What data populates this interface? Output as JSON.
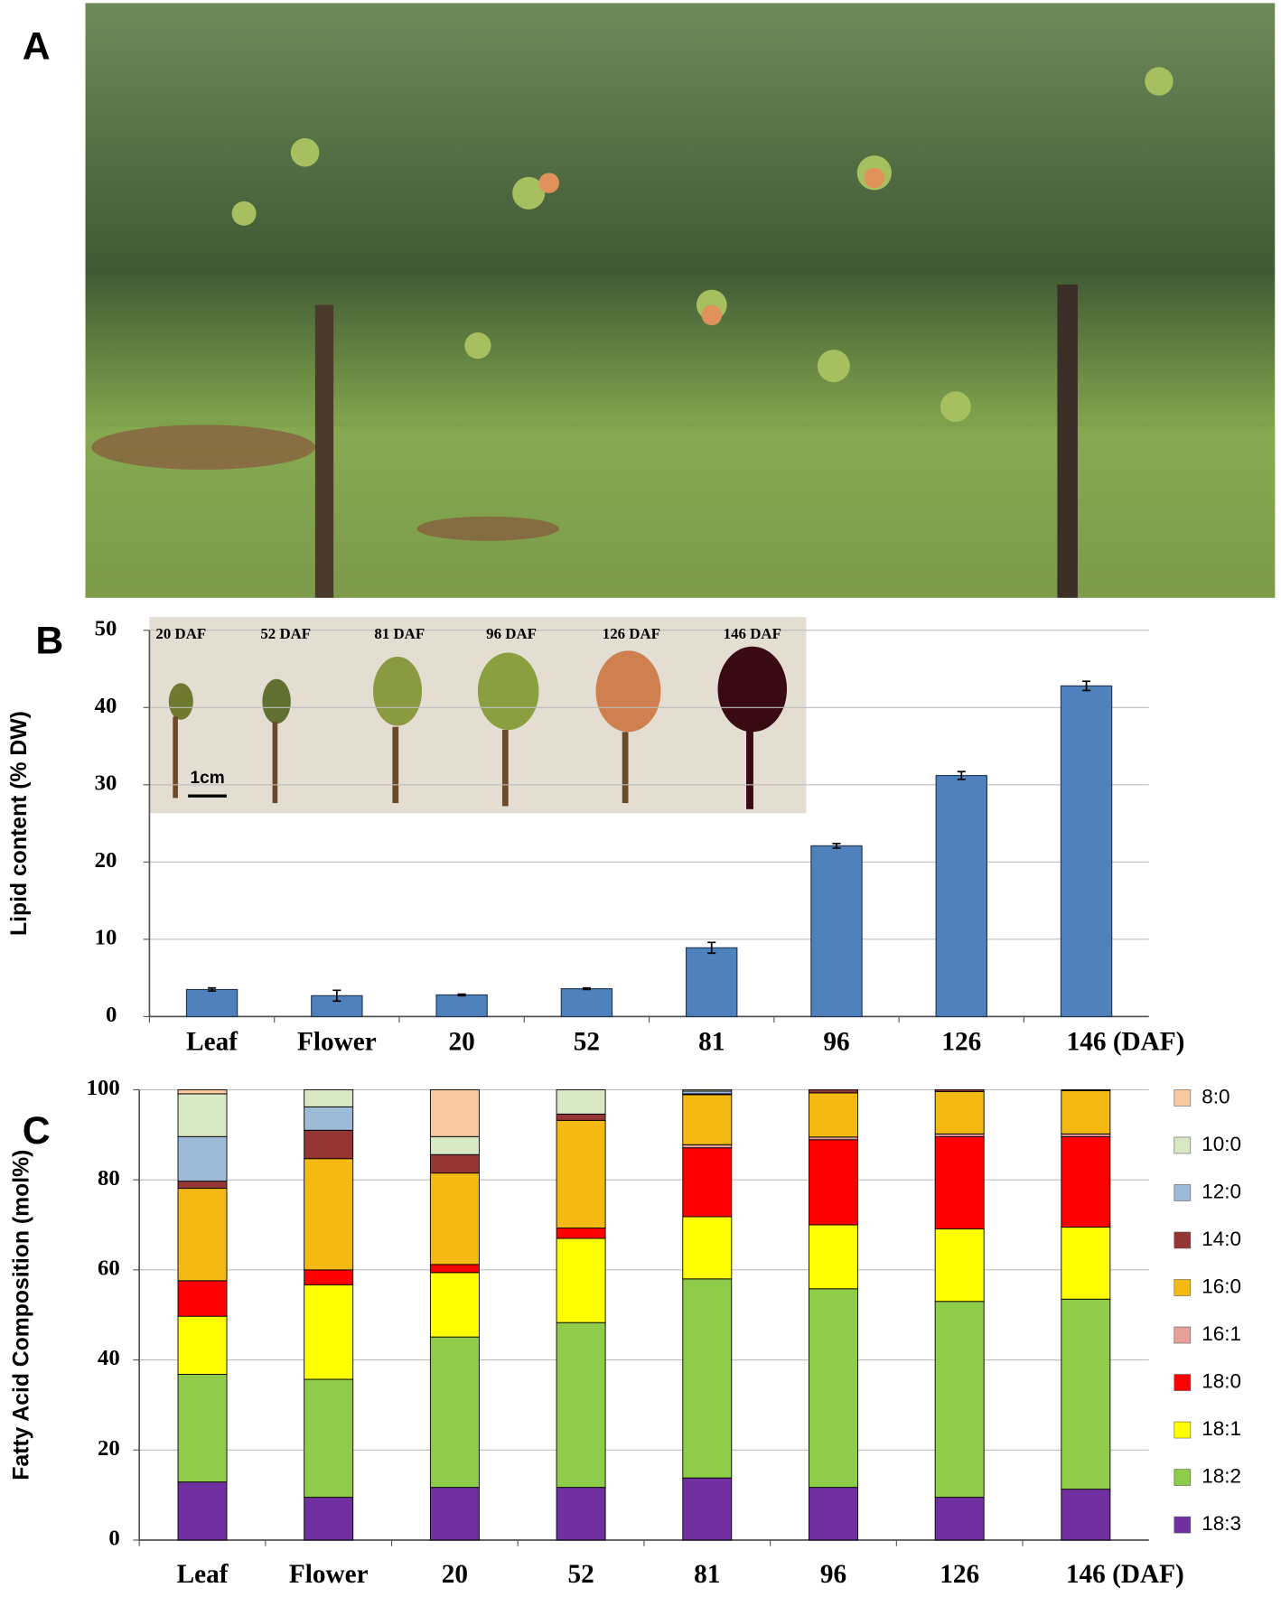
{
  "photo": {
    "panel_label": "A"
  },
  "chart_data": [
    {
      "type": "bar",
      "panel_label": "B",
      "y_label": "Lipid content (% DW)",
      "x_label": "(DAF)",
      "categories": [
        "Leaf",
        "Flower",
        "20",
        "52",
        "81",
        "96",
        "126",
        "146"
      ],
      "values": [
        3.5,
        2.7,
        2.8,
        3.6,
        8.9,
        22.1,
        31.2,
        42.8
      ],
      "errors": [
        0.2,
        0.7,
        0.1,
        0.1,
        0.7,
        0.3,
        0.5,
        0.6
      ],
      "color": "#4f81bd",
      "ylim": [
        0,
        50
      ],
      "yticks": [
        0,
        10,
        20,
        30,
        40,
        50
      ],
      "grid": true,
      "inset": {
        "labels": [
          "20 DAF",
          "52 DAF",
          "81 DAF",
          "96 DAF",
          "126 DAF",
          "146 DAF"
        ],
        "scale_bar": "1cm"
      }
    },
    {
      "type": "stacked_bar",
      "panel_label": "C",
      "y_label": "Fatty Acid Composition (mol%)",
      "x_label": "(DAF)",
      "categories": [
        "Leaf",
        "Flower",
        "20",
        "52",
        "81",
        "96",
        "126",
        "146"
      ],
      "ylim": [
        0,
        100
      ],
      "yticks": [
        0,
        20,
        40,
        60,
        80,
        100
      ],
      "grid": true,
      "legend": "right",
      "series": [
        {
          "name": "8:0",
          "color": "#f8c9a0",
          "values": [
            0.9,
            0,
            10.4,
            0,
            0,
            0,
            0,
            0
          ]
        },
        {
          "name": "10:0",
          "color": "#d9e8c4",
          "values": [
            9.5,
            3.8,
            4.0,
            5.4,
            0.3,
            0,
            0,
            0
          ]
        },
        {
          "name": "12:0",
          "color": "#9dbad6",
          "values": [
            9.9,
            5.2,
            0,
            0,
            0.6,
            0,
            0,
            0
          ]
        },
        {
          "name": "14:0",
          "color": "#963634",
          "values": [
            1.6,
            6.3,
            4.1,
            1.4,
            0.2,
            0.7,
            0.4,
            0.2
          ]
        },
        {
          "name": "16:0",
          "color": "#f5b914",
          "values": [
            20.5,
            24.7,
            20.3,
            23.9,
            11.1,
            9.8,
            9.4,
            9.6
          ]
        },
        {
          "name": "16:1",
          "color": "#e6a09a",
          "values": [
            0,
            0,
            0,
            0,
            0.7,
            0.6,
            0.6,
            0.6
          ]
        },
        {
          "name": "18:0",
          "color": "#ff0000",
          "values": [
            7.9,
            3.3,
            1.8,
            2.3,
            15.3,
            18.9,
            20.5,
            20.1
          ]
        },
        {
          "name": "18:1",
          "color": "#ffff00",
          "values": [
            12.9,
            21.0,
            14.3,
            18.7,
            13.8,
            14.2,
            16.1,
            16.0
          ]
        },
        {
          "name": "18:2",
          "color": "#8fcc4a",
          "values": [
            23.9,
            26.2,
            33.4,
            36.6,
            44.2,
            44.1,
            43.5,
            42.2
          ]
        },
        {
          "name": "18:3",
          "color": "#7030a0",
          "values": [
            12.9,
            9.5,
            11.7,
            11.7,
            13.8,
            11.7,
            9.5,
            11.3
          ]
        }
      ]
    }
  ]
}
